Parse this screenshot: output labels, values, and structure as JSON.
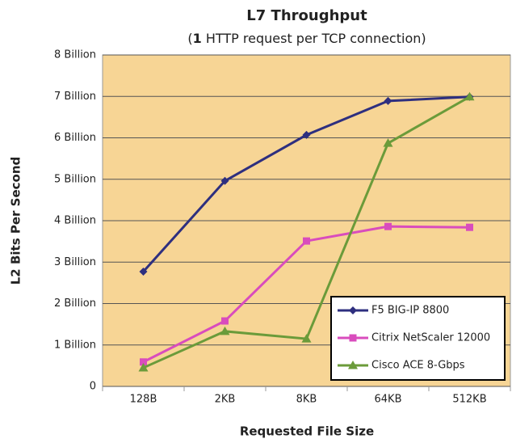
{
  "chart_data": {
    "type": "line",
    "title": "L7 Throughput",
    "subtitle_parts": [
      "(",
      "1",
      " HTTP request per TCP connection)"
    ],
    "x_label": "Requested File Size",
    "y_label": "L2 Bits Per Second",
    "categories": [
      "128B",
      "2KB",
      "8KB",
      "64KB",
      "512KB"
    ],
    "series": [
      {
        "name": "F5 BIG-IP 8800",
        "color": "#2e2f7f",
        "marker": "diamond",
        "values": [
          2.77,
          4.96,
          6.07,
          6.89,
          6.99
        ]
      },
      {
        "name": "Citrix NetScaler 12000",
        "color": "#d94cbd",
        "marker": "square",
        "values": [
          0.59,
          1.58,
          3.51,
          3.86,
          3.84
        ]
      },
      {
        "name": "Cisco ACE 8-Gbps",
        "color": "#6b9b3a",
        "marker": "triangle",
        "values": [
          0.45,
          1.33,
          1.15,
          5.87,
          6.99
        ]
      }
    ],
    "ylim": [
      0,
      8
    ],
    "yticks": [
      0,
      {
        "value": 1,
        "label": "1  Billion"
      },
      {
        "value": 2,
        "label": "2 Billion"
      },
      {
        "value": 3,
        "label": "3 Billion"
      },
      {
        "value": 4,
        "label": "4 Billion"
      },
      {
        "value": 5,
        "label": "5 Billion"
      },
      {
        "value": 6,
        "label": "6 Billion"
      },
      {
        "value": 7,
        "label": "7 Billion"
      },
      {
        "value": 8,
        "label": "8 Billion"
      }
    ],
    "grid": true,
    "legend": "lower right",
    "plot_background": "#f7d595"
  }
}
